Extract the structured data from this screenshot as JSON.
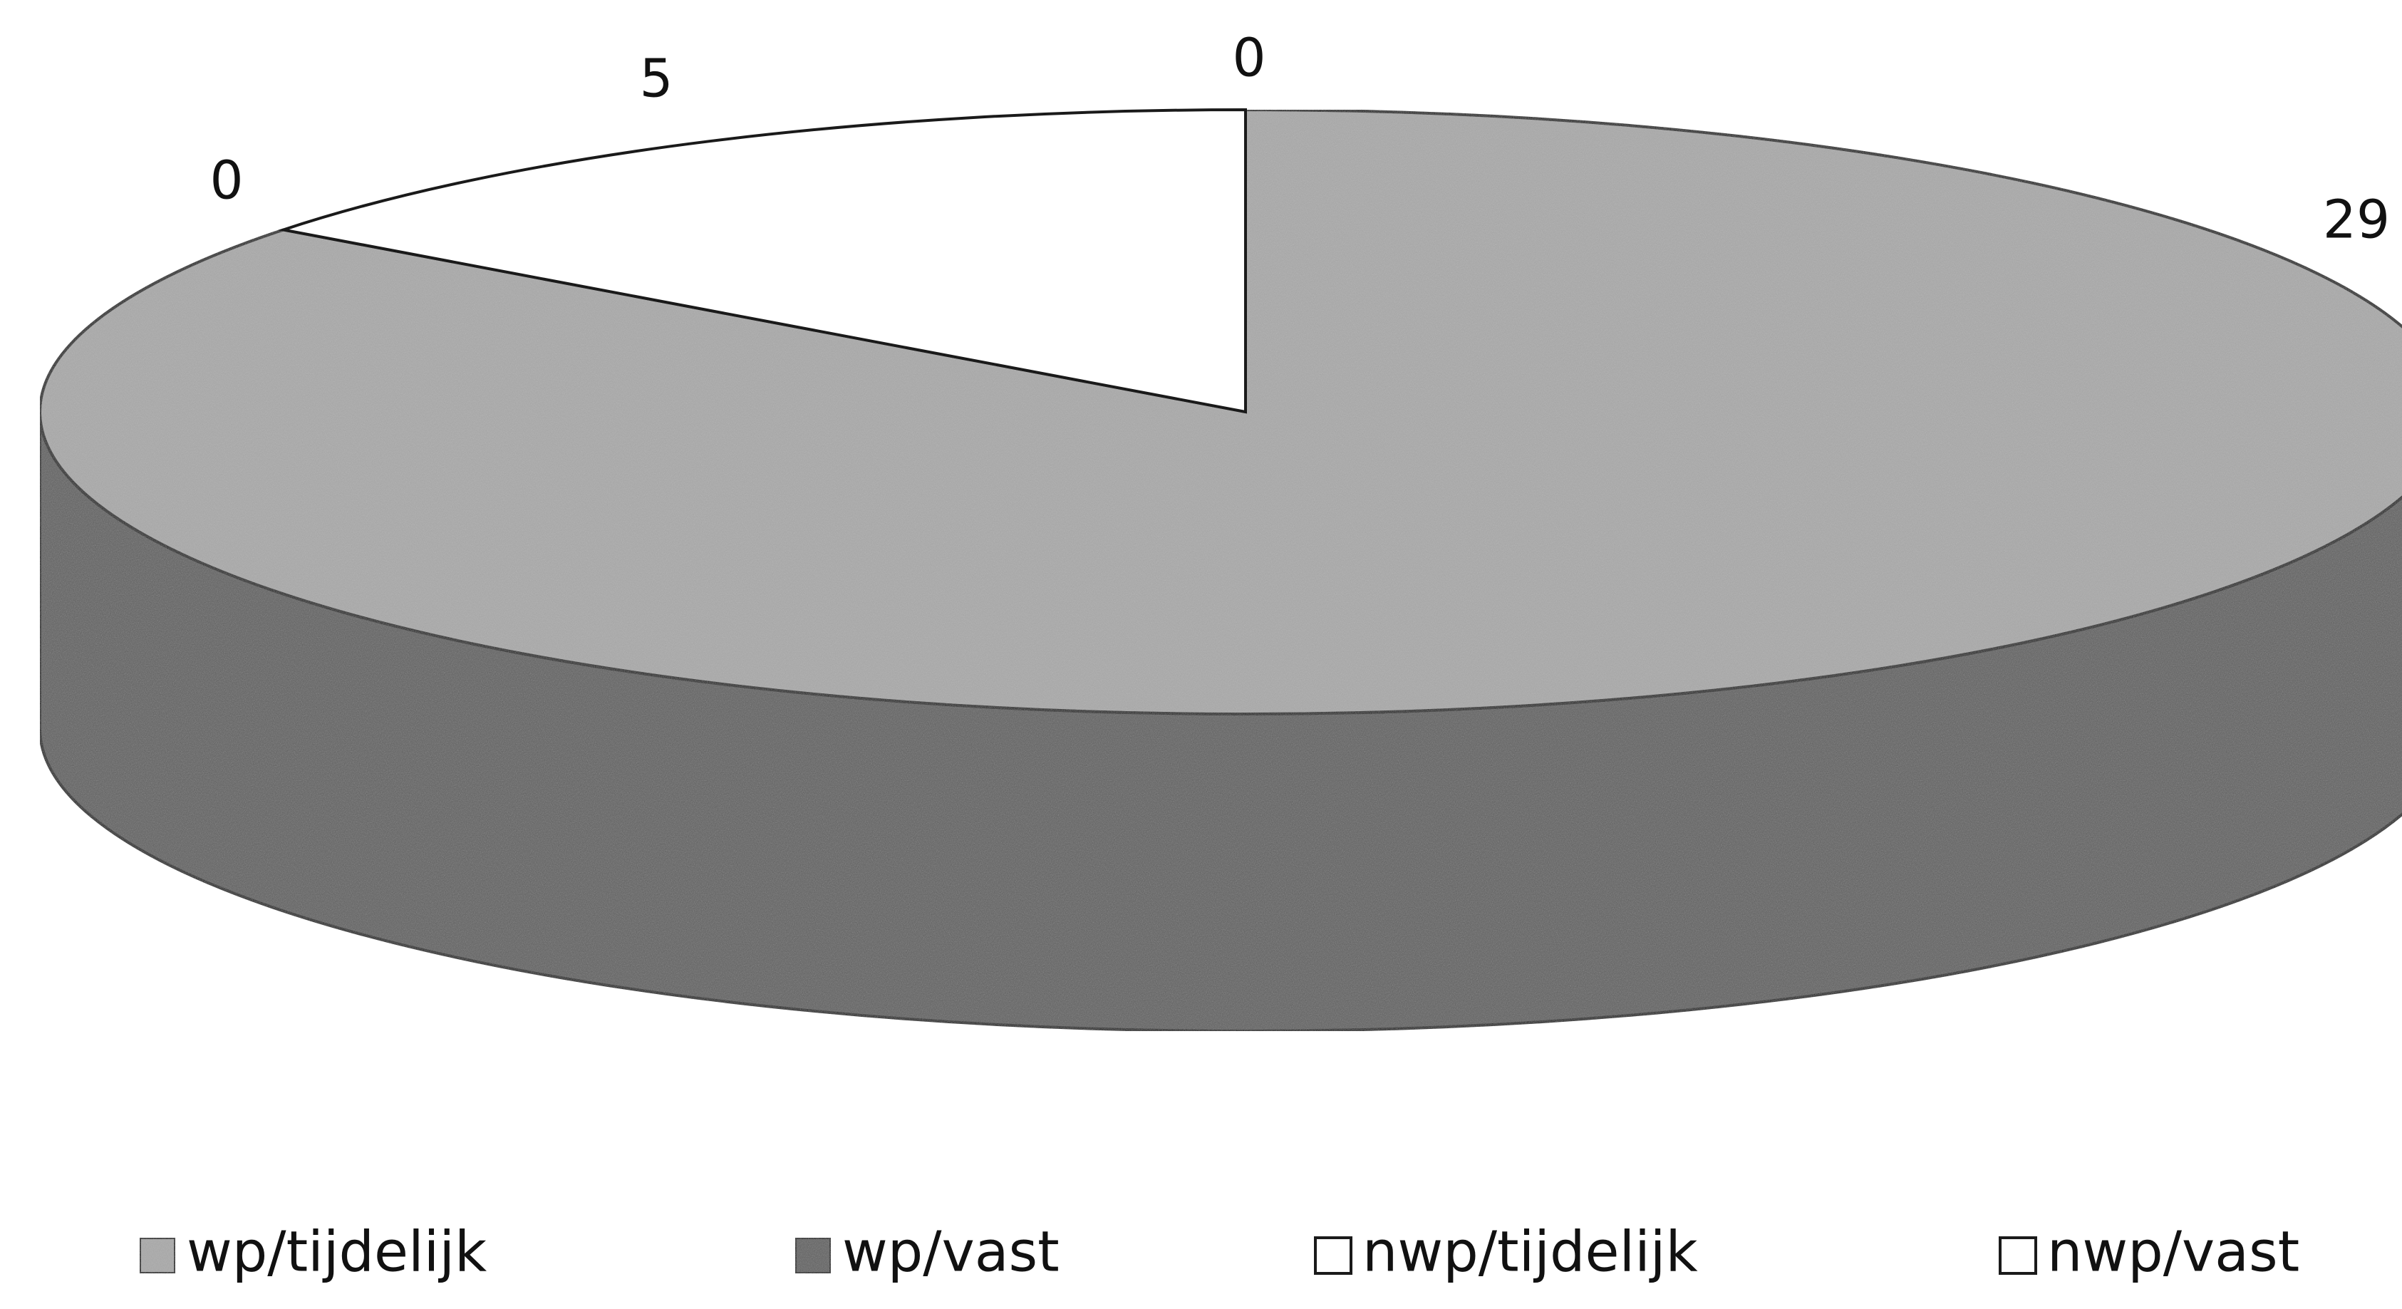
{
  "chart_data": {
    "type": "pie",
    "style": "3d",
    "categories": [
      "wp/tijdelijk",
      "wp/vast",
      "nwp/tijdelijk",
      "nwp/vast"
    ],
    "values": [
      29,
      0,
      5,
      0
    ],
    "data_labels": [
      "29",
      "0",
      "5",
      "0"
    ],
    "colors": [
      "#a9a9a9",
      "#5e5e5e",
      "#ffffff",
      "#ffffff"
    ],
    "side_color": "#5e5e5e",
    "legend": {
      "position": "bottom",
      "entries": [
        {
          "label": "wp/tijdelijk",
          "color": "#a9a9a9"
        },
        {
          "label": "wp/vast",
          "color": "#5e5e5e"
        },
        {
          "label": "nwp/tijdelijk",
          "color": "#ffffff"
        },
        {
          "label": "nwp/vast",
          "color": "#ffffff"
        }
      ]
    },
    "title": ""
  }
}
